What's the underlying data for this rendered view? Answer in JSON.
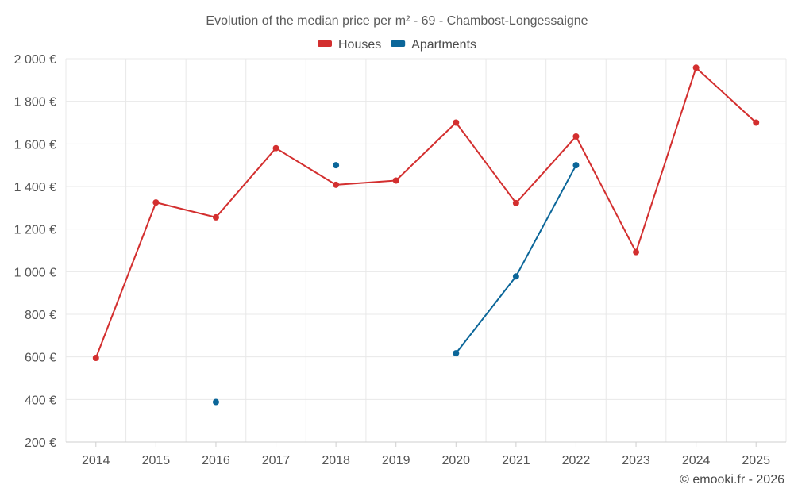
{
  "chart_data": {
    "type": "line",
    "title": "Evolution of the median price per m² - 69 - Chambost-Longessaigne",
    "xlabel": "",
    "ylabel": "",
    "categories": [
      "2014",
      "2015",
      "2016",
      "2017",
      "2018",
      "2019",
      "2020",
      "2021",
      "2022",
      "2023",
      "2024",
      "2025"
    ],
    "ylim": [
      200,
      2000
    ],
    "yticks": [
      200,
      400,
      600,
      800,
      1000,
      1200,
      1400,
      1600,
      1800,
      2000
    ],
    "ytick_labels": [
      "200 €",
      "400 €",
      "600 €",
      "800 €",
      "1 000 €",
      "1 200 €",
      "1 400 €",
      "1 600 €",
      "1 800 €",
      "2 000 €"
    ],
    "grid": true,
    "legend_position": "top-center",
    "series": [
      {
        "name": "Houses",
        "color": "#d32f2f",
        "values": [
          595,
          1325,
          1255,
          1580,
          1408,
          1428,
          1700,
          1322,
          1635,
          1092,
          1958,
          1700
        ]
      },
      {
        "name": "Apartments",
        "color": "#0b6699",
        "values": [
          null,
          null,
          388,
          null,
          1500,
          null,
          617,
          978,
          1500,
          null,
          null,
          null
        ]
      }
    ]
  },
  "credit": "© emooki.fr - 2026"
}
